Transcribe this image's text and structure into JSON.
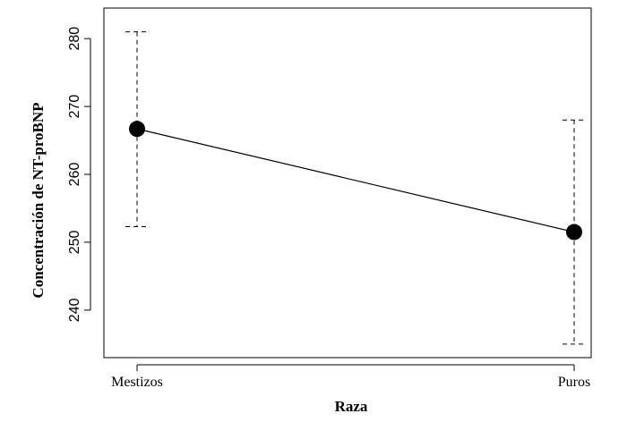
{
  "chart_data": {
    "type": "line",
    "title": "",
    "xlabel": "Raza",
    "ylabel": "Concentración de NT-proBNP",
    "categories": [
      "Mestizos",
      "Puros"
    ],
    "series": [
      {
        "values": [
          266.7,
          251.5
        ],
        "error_low": [
          252.3,
          235.0
        ],
        "error_high": [
          281.0,
          268.0
        ]
      }
    ],
    "y_ticks": [
      "240",
      "250",
      "260",
      "270",
      "280"
    ],
    "ylim": [
      233,
      284.5
    ],
    "grid": false,
    "legend": "none",
    "point_color": "#000000",
    "line_color": "#000000",
    "error_bar_style": "dashed"
  }
}
